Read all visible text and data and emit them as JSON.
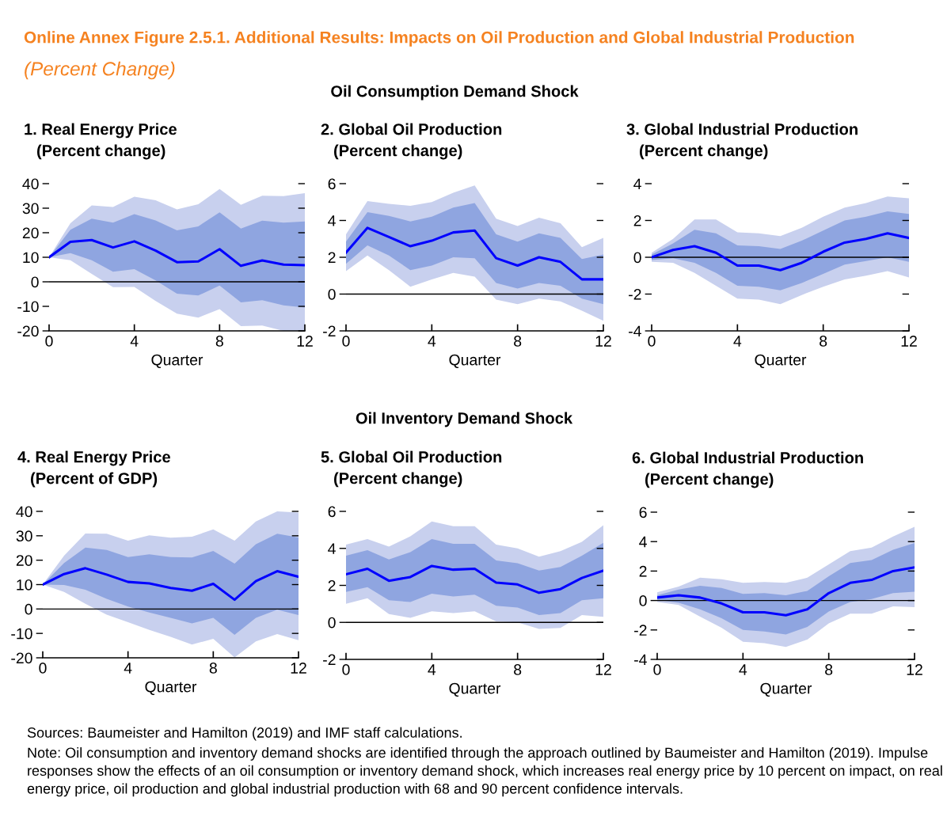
{
  "chart_data": [
    {
      "type": "line",
      "title": "1. Real Energy Price",
      "subtitle": "(Percent change)",
      "xlabel": "Quarter",
      "x": [
        0,
        1,
        2,
        3,
        4,
        5,
        6,
        7,
        8,
        9,
        10,
        11,
        12
      ],
      "xlim": [
        0,
        12
      ],
      "xticks": [
        0,
        4,
        8,
        12
      ],
      "ylim": [
        -20,
        40
      ],
      "yticks": [
        -20,
        -10,
        0,
        10,
        20,
        30,
        40
      ],
      "grid": false,
      "legend": false,
      "annotations": [
        "Online Annex Figure 2.5.1. Additional Results: Impacts on Oil Production and Global Industrial Production",
        "(Percent Change)",
        "Oil Consumption Demand Shock"
      ],
      "ref_lines": [
        {
          "axis": "y",
          "value": 0,
          "color": "#000000"
        }
      ],
      "series": [
        {
          "color": "#c8d0ee",
          "values": [
            null,
            null,
            null,
            null,
            null,
            null,
            null,
            null,
            null,
            null,
            null,
            null,
            null
          ],
          "lower": [
            10,
            8.8,
            3.2,
            -2.2,
            -2.1,
            -7.8,
            -13,
            -14.6,
            -11.1,
            -18.1,
            -17.8,
            -20,
            -20
          ],
          "upper": [
            10,
            23.9,
            31.1,
            30.5,
            34.7,
            33.2,
            29.5,
            31.6,
            37.8,
            31.4,
            35.1,
            34.9,
            36.1
          ]
        },
        {
          "color": "#8fa5e0",
          "values": [
            null,
            null,
            null,
            null,
            null,
            null,
            null,
            null,
            null,
            null,
            null,
            null,
            null
          ],
          "lower": [
            10,
            11.7,
            8.8,
            4.1,
            5.2,
            0.6,
            -4.8,
            -5.6,
            -1.5,
            -8.4,
            -7.5,
            -9.6,
            -10.5
          ],
          "upper": [
            10,
            21.2,
            25.7,
            24.1,
            27.6,
            25,
            21,
            22.6,
            28.3,
            21.7,
            24.9,
            24.1,
            24.6
          ]
        },
        {
          "color": "#0000ff",
          "values": [
            10,
            16.3,
            17,
            14,
            16.5,
            12.7,
            8,
            8.3,
            13.3,
            6.5,
            8.7,
            7,
            6.8
          ]
        }
      ]
    },
    {
      "type": "line",
      "title": "2. Global Oil Production",
      "subtitle": "(Percent change)",
      "xlabel": "Quarter",
      "x": [
        0,
        1,
        2,
        3,
        4,
        5,
        6,
        7,
        8,
        9,
        10,
        11,
        12
      ],
      "xlim": [
        0,
        12
      ],
      "xticks": [
        0,
        4,
        8,
        12
      ],
      "ylim": [
        -2,
        6
      ],
      "yticks": [
        -2,
        0,
        2,
        4,
        6
      ],
      "grid": false,
      "legend": false,
      "ref_lines": [
        {
          "axis": "y",
          "value": 0,
          "color": "#000000"
        }
      ],
      "series": [
        {
          "color": "#c8d0ee",
          "values": [
            null,
            null,
            null,
            null,
            null,
            null,
            null,
            null,
            null,
            null,
            null,
            null,
            null
          ],
          "lower": [
            1.25,
            2.1,
            1.3,
            0.4,
            0.8,
            1.15,
            0.95,
            -0.3,
            -0.55,
            -0.25,
            -0.4,
            -0.9,
            -1.45
          ],
          "upper": [
            3.25,
            5.05,
            4.9,
            4.8,
            5.0,
            5.5,
            5.9,
            4.1,
            3.7,
            4.15,
            3.85,
            2.55,
            3.05
          ]
        },
        {
          "color": "#8fa5e0",
          "values": [
            null,
            null,
            null,
            null,
            null,
            null,
            null,
            null,
            null,
            null,
            null,
            null,
            null
          ],
          "lower": [
            1.65,
            2.65,
            2.1,
            1.3,
            1.55,
            2.0,
            1.95,
            0.6,
            0.3,
            0.6,
            0.45,
            -0.25,
            -0.55
          ],
          "upper": [
            2.85,
            4.45,
            4.25,
            3.95,
            4.2,
            4.7,
            4.95,
            3.25,
            2.85,
            3.3,
            3.05,
            1.9,
            2.15
          ]
        },
        {
          "color": "#0000ff",
          "values": [
            2.25,
            3.6,
            3.1,
            2.6,
            2.9,
            3.35,
            3.45,
            1.95,
            1.55,
            2.0,
            1.75,
            0.8,
            0.8
          ]
        }
      ]
    },
    {
      "type": "line",
      "title": "3. Global Industrial Production",
      "subtitle": "(Percent change)",
      "xlabel": "Quarter",
      "x": [
        0,
        1,
        2,
        3,
        4,
        5,
        6,
        7,
        8,
        9,
        10,
        11,
        12
      ],
      "xlim": [
        0,
        12
      ],
      "xticks": [
        0,
        4,
        8,
        12
      ],
      "ylim": [
        -4,
        4
      ],
      "yticks": [
        -4,
        -2,
        0,
        2,
        4
      ],
      "grid": false,
      "legend": false,
      "ref_lines": [
        {
          "axis": "y",
          "value": 0,
          "color": "#000000"
        }
      ],
      "series": [
        {
          "color": "#c8d0ee",
          "values": [
            null,
            null,
            null,
            null,
            null,
            null,
            null,
            null,
            null,
            null,
            null,
            null,
            null
          ],
          "lower": [
            -0.25,
            -0.3,
            -0.85,
            -1.55,
            -2.25,
            -2.3,
            -2.55,
            -2.05,
            -1.6,
            -1.2,
            -1.0,
            -0.75,
            -1.1
          ],
          "upper": [
            0.25,
            1.0,
            2.05,
            2.05,
            1.35,
            1.3,
            1.15,
            1.6,
            2.2,
            2.7,
            2.95,
            3.3,
            3.2
          ]
        },
        {
          "color": "#8fa5e0",
          "values": [
            null,
            null,
            null,
            null,
            null,
            null,
            null,
            null,
            null,
            null,
            null,
            null,
            null
          ],
          "lower": [
            -0.15,
            -0.05,
            -0.3,
            -0.85,
            -1.55,
            -1.6,
            -1.8,
            -1.4,
            -0.9,
            -0.4,
            -0.2,
            0,
            -0.25
          ],
          "upper": [
            0.15,
            0.75,
            1.5,
            1.3,
            0.65,
            0.6,
            0.45,
            0.9,
            1.45,
            2.0,
            2.2,
            2.5,
            2.35
          ]
        },
        {
          "color": "#0000ff",
          "values": [
            0,
            0.4,
            0.6,
            0.25,
            -0.45,
            -0.45,
            -0.7,
            -0.3,
            0.3,
            0.8,
            1.0,
            1.3,
            1.05
          ]
        }
      ]
    },
    {
      "type": "line",
      "title": "4. Real Energy Price",
      "subtitle": "(Percent of GDP)",
      "xlabel": "Quarter",
      "x": [
        0,
        1,
        2,
        3,
        4,
        5,
        6,
        7,
        8,
        9,
        10,
        11,
        12
      ],
      "xlim": [
        0,
        12
      ],
      "xticks": [
        0,
        4,
        8,
        12
      ],
      "ylim": [
        -20,
        40
      ],
      "yticks": [
        -20,
        -10,
        0,
        10,
        20,
        30,
        40
      ],
      "grid": false,
      "legend": false,
      "annotations": [
        "Oil Inventory Demand Shock",
        "Sources: Baumeister and Hamilton (2019) and IMF staff calculations.",
        "Note: Oil consumption and inventory demand shocks are identified through the approach outlined by Baumeister and Hamilton (2019). Impulse responses show the effects of an oil consumption or inventory demand shock, which increases real energy price by 10 percent on impact, on real energy price, oil production and global industrial production with 68 and 90 percent confidence intervals."
      ],
      "ref_lines": [
        {
          "axis": "y",
          "value": 0,
          "color": "#000000"
        }
      ],
      "series": [
        {
          "color": "#c8d0ee",
          "values": [
            null,
            null,
            null,
            null,
            null,
            null,
            null,
            null,
            null,
            null,
            null,
            null,
            null
          ],
          "lower": [
            10,
            7.0,
            2.1,
            -2.3,
            -5.4,
            -8.6,
            -11.4,
            -14.6,
            -12.2,
            -19.8,
            -13.3,
            -10.3,
            -12.8
          ],
          "upper": [
            10,
            21.8,
            30.9,
            30.8,
            28,
            30.2,
            29.2,
            29.6,
            32.6,
            28,
            35.9,
            40,
            39.5
          ]
        },
        {
          "color": "#8fa5e0",
          "values": [
            null,
            null,
            null,
            null,
            null,
            null,
            null,
            null,
            null,
            null,
            null,
            null,
            null
          ],
          "lower": [
            10,
            9.8,
            7.9,
            4.2,
            1.0,
            -1.4,
            -3.6,
            -5.9,
            -3.6,
            -10.6,
            -3.6,
            -0.3,
            -2.5
          ],
          "upper": [
            10,
            18.8,
            25.2,
            24.2,
            21.3,
            22.4,
            21.3,
            21.1,
            23.8,
            18.6,
            26.5,
            30.8,
            29.3
          ]
        },
        {
          "color": "#0000ff",
          "values": [
            10,
            14.3,
            16.7,
            14.1,
            11.1,
            10.5,
            8.6,
            7.5,
            10.3,
            3.8,
            11.4,
            15.5,
            13.2
          ]
        }
      ]
    },
    {
      "type": "line",
      "title": "5. Global Oil Production",
      "subtitle": "(Percent change)",
      "xlabel": "Quarter",
      "x": [
        0,
        1,
        2,
        3,
        4,
        5,
        6,
        7,
        8,
        9,
        10,
        11,
        12
      ],
      "xlim": [
        0,
        12
      ],
      "xticks": [
        0,
        4,
        8,
        12
      ],
      "ylim": [
        -2,
        6
      ],
      "yticks": [
        -2,
        0,
        2,
        4,
        6
      ],
      "grid": false,
      "legend": false,
      "ref_lines": [
        {
          "axis": "y",
          "value": 0,
          "color": "#000000"
        }
      ],
      "series": [
        {
          "color": "#c8d0ee",
          "values": [
            null,
            null,
            null,
            null,
            null,
            null,
            null,
            null,
            null,
            null,
            null,
            null,
            null
          ],
          "lower": [
            1.0,
            1.3,
            0.45,
            0.25,
            0.6,
            0.5,
            0.6,
            0.05,
            0,
            -0.35,
            -0.3,
            0.4,
            0.3
          ],
          "upper": [
            4.2,
            4.5,
            4.1,
            4.65,
            5.45,
            5.2,
            5.2,
            4.2,
            4.0,
            3.55,
            3.85,
            4.35,
            5.25
          ]
        },
        {
          "color": "#8fa5e0",
          "values": [
            null,
            null,
            null,
            null,
            null,
            null,
            null,
            null,
            null,
            null,
            null,
            null,
            null
          ],
          "lower": [
            1.65,
            1.9,
            1.2,
            1.1,
            1.55,
            1.4,
            1.5,
            0.9,
            0.8,
            0.4,
            0.5,
            1.2,
            1.3
          ],
          "upper": [
            3.6,
            3.9,
            3.4,
            3.8,
            4.5,
            4.25,
            4.25,
            3.35,
            3.2,
            2.8,
            3.0,
            3.6,
            4.3
          ]
        },
        {
          "color": "#0000ff",
          "values": [
            2.6,
            2.9,
            2.25,
            2.45,
            3.05,
            2.85,
            2.9,
            2.15,
            2.05,
            1.6,
            1.8,
            2.4,
            2.8
          ]
        }
      ]
    },
    {
      "type": "line",
      "title": "6. Global Industrial Production",
      "subtitle": "(Percent change)",
      "xlabel": "Quarter",
      "x": [
        0,
        1,
        2,
        3,
        4,
        5,
        6,
        7,
        8,
        9,
        10,
        11,
        12
      ],
      "xlim": [
        0,
        12
      ],
      "xticks": [
        0,
        4,
        8,
        12
      ],
      "ylim": [
        -4,
        6
      ],
      "yticks": [
        -4,
        -2,
        0,
        2,
        4,
        6
      ],
      "grid": false,
      "legend": false,
      "ref_lines": [
        {
          "axis": "y",
          "value": 0,
          "color": "#000000"
        }
      ],
      "series": [
        {
          "color": "#c8d0ee",
          "values": [
            null,
            null,
            null,
            null,
            null,
            null,
            null,
            null,
            null,
            null,
            null,
            null,
            null
          ],
          "lower": [
            -0.1,
            -0.3,
            -1.1,
            -1.85,
            -2.8,
            -2.9,
            -3.15,
            -2.65,
            -1.55,
            -0.9,
            -0.9,
            -0.4,
            -0.45
          ],
          "upper": [
            0.55,
            0.95,
            1.55,
            1.45,
            1.2,
            1.25,
            1.2,
            1.55,
            2.45,
            3.35,
            3.6,
            4.35,
            5.0
          ]
        },
        {
          "color": "#8fa5e0",
          "values": [
            null,
            null,
            null,
            null,
            null,
            null,
            null,
            null,
            null,
            null,
            null,
            null,
            null
          ],
          "lower": [
            0.05,
            -0.15,
            -0.6,
            -1.2,
            -2.0,
            -2.1,
            -2.3,
            -1.8,
            -0.75,
            -0.1,
            0.1,
            0.5,
            0.6
          ],
          "upper": [
            0.35,
            0.75,
            1.0,
            0.85,
            0.45,
            0.5,
            0.35,
            0.65,
            1.65,
            2.55,
            2.75,
            3.45,
            3.9
          ]
        },
        {
          "color": "#0000ff",
          "values": [
            0.2,
            0.35,
            0.2,
            -0.2,
            -0.8,
            -0.8,
            -1.0,
            -0.6,
            0.5,
            1.2,
            1.4,
            2.0,
            2.25
          ]
        }
      ]
    }
  ]
}
